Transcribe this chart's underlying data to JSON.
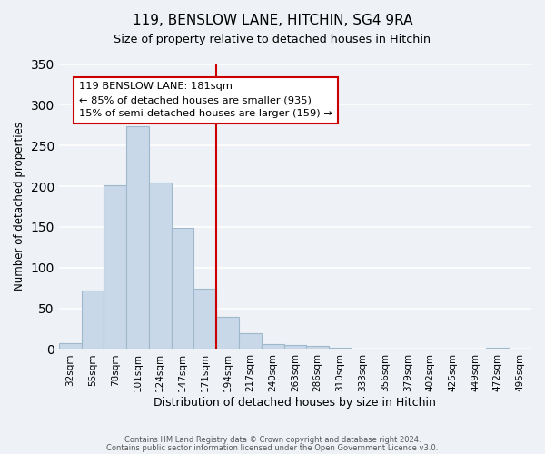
{
  "title": "119, BENSLOW LANE, HITCHIN, SG4 9RA",
  "subtitle": "Size of property relative to detached houses in Hitchin",
  "xlabel": "Distribution of detached houses by size in Hitchin",
  "ylabel": "Number of detached properties",
  "bar_labels": [
    "32sqm",
    "55sqm",
    "78sqm",
    "101sqm",
    "124sqm",
    "147sqm",
    "171sqm",
    "194sqm",
    "217sqm",
    "240sqm",
    "263sqm",
    "286sqm",
    "310sqm",
    "333sqm",
    "356sqm",
    "379sqm",
    "402sqm",
    "425sqm",
    "449sqm",
    "472sqm",
    "495sqm"
  ],
  "bar_values": [
    7,
    72,
    201,
    274,
    205,
    149,
    74,
    40,
    20,
    6,
    5,
    4,
    2,
    1,
    0,
    0,
    0,
    0,
    0,
    2,
    0
  ],
  "bar_color": "#c8d8e8",
  "bar_edge_color": "#a0b8cc",
  "vline_color": "#cc0000",
  "vline_pos": 6.5,
  "annotation_title": "119 BENSLOW LANE: 181sqm",
  "annotation_line1": "← 85% of detached houses are smaller (935)",
  "annotation_line2": "15% of semi-detached houses are larger (159) →",
  "annotation_box_color": "#cc0000",
  "ylim": [
    0,
    350
  ],
  "yticks": [
    0,
    50,
    100,
    150,
    200,
    250,
    300,
    350
  ],
  "footer1": "Contains HM Land Registry data © Crown copyright and database right 2024.",
  "footer2": "Contains public sector information licensed under the Open Government Licence v3.0.",
  "bg_color": "#eef2f7",
  "grid_color": "#ffffff"
}
